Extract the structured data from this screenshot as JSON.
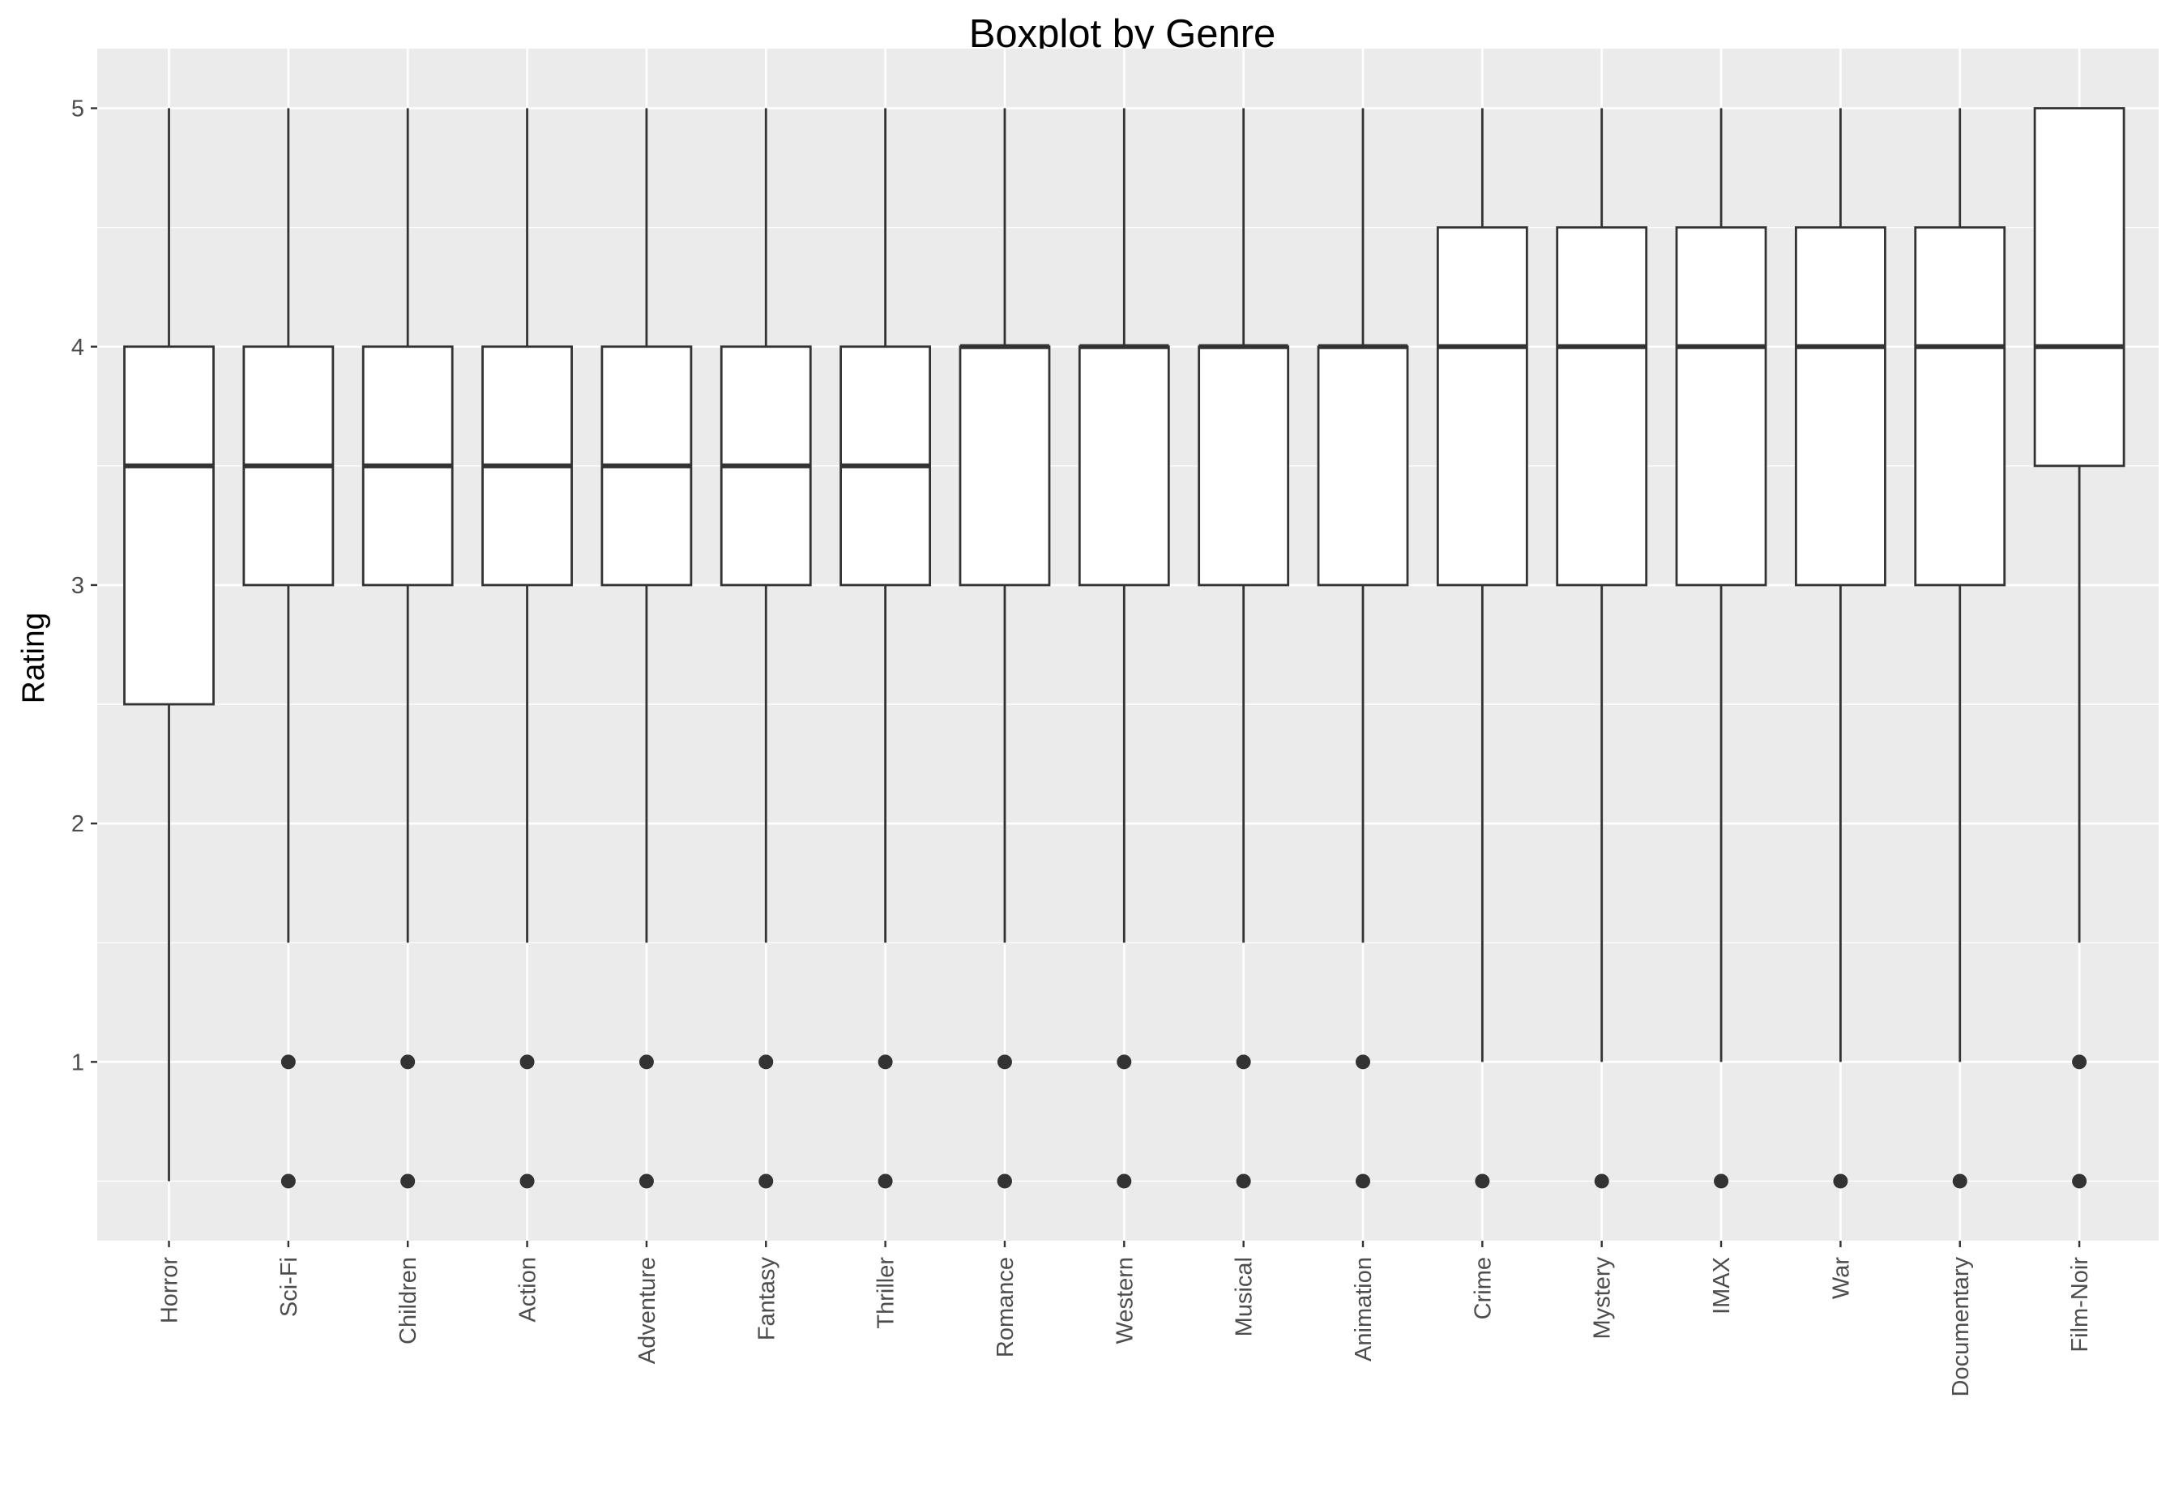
{
  "chart_data": {
    "type": "boxplot",
    "title": "Boxplot by Genre",
    "xlabel": "",
    "ylabel": "Rating",
    "ylim": [
      0.25,
      5.25
    ],
    "yticks": [
      1,
      2,
      3,
      4,
      5
    ],
    "grid": true,
    "colors": {
      "panel": "#ebebeb",
      "grid": "#ffffff",
      "box_fill": "#ffffff",
      "box_line": "#333333",
      "tick_text": "#4d4d4d"
    },
    "categories": [
      "Horror",
      "Sci-Fi",
      "Children",
      "Action",
      "Adventure",
      "Fantasy",
      "Thriller",
      "Romance",
      "Western",
      "Musical",
      "Animation",
      "Crime",
      "Mystery",
      "IMAX",
      "War",
      "Documentary",
      "Film-Noir"
    ],
    "boxes": [
      {
        "category": "Horror",
        "whisker_low": 0.5,
        "q1": 2.5,
        "median": 3.5,
        "q3": 4.0,
        "whisker_high": 5.0,
        "outliers": []
      },
      {
        "category": "Sci-Fi",
        "whisker_low": 1.5,
        "q1": 3.0,
        "median": 3.5,
        "q3": 4.0,
        "whisker_high": 5.0,
        "outliers": [
          1.0,
          0.5
        ]
      },
      {
        "category": "Children",
        "whisker_low": 1.5,
        "q1": 3.0,
        "median": 3.5,
        "q3": 4.0,
        "whisker_high": 5.0,
        "outliers": [
          1.0,
          0.5
        ]
      },
      {
        "category": "Action",
        "whisker_low": 1.5,
        "q1": 3.0,
        "median": 3.5,
        "q3": 4.0,
        "whisker_high": 5.0,
        "outliers": [
          1.0,
          0.5
        ]
      },
      {
        "category": "Adventure",
        "whisker_low": 1.5,
        "q1": 3.0,
        "median": 3.5,
        "q3": 4.0,
        "whisker_high": 5.0,
        "outliers": [
          1.0,
          0.5
        ]
      },
      {
        "category": "Fantasy",
        "whisker_low": 1.5,
        "q1": 3.0,
        "median": 3.5,
        "q3": 4.0,
        "whisker_high": 5.0,
        "outliers": [
          1.0,
          0.5
        ]
      },
      {
        "category": "Thriller",
        "whisker_low": 1.5,
        "q1": 3.0,
        "median": 3.5,
        "q3": 4.0,
        "whisker_high": 5.0,
        "outliers": [
          1.0,
          0.5
        ]
      },
      {
        "category": "Romance",
        "whisker_low": 1.5,
        "q1": 3.0,
        "median": 4.0,
        "q3": 4.0,
        "whisker_high": 5.0,
        "outliers": [
          1.0,
          0.5
        ]
      },
      {
        "category": "Western",
        "whisker_low": 1.5,
        "q1": 3.0,
        "median": 4.0,
        "q3": 4.0,
        "whisker_high": 5.0,
        "outliers": [
          1.0,
          0.5
        ]
      },
      {
        "category": "Musical",
        "whisker_low": 1.5,
        "q1": 3.0,
        "median": 4.0,
        "q3": 4.0,
        "whisker_high": 5.0,
        "outliers": [
          1.0,
          0.5
        ]
      },
      {
        "category": "Animation",
        "whisker_low": 1.5,
        "q1": 3.0,
        "median": 4.0,
        "q3": 4.0,
        "whisker_high": 5.0,
        "outliers": [
          1.0,
          0.5
        ]
      },
      {
        "category": "Crime",
        "whisker_low": 1.0,
        "q1": 3.0,
        "median": 4.0,
        "q3": 4.5,
        "whisker_high": 5.0,
        "outliers": [
          0.5
        ]
      },
      {
        "category": "Mystery",
        "whisker_low": 1.0,
        "q1": 3.0,
        "median": 4.0,
        "q3": 4.5,
        "whisker_high": 5.0,
        "outliers": [
          0.5
        ]
      },
      {
        "category": "IMAX",
        "whisker_low": 1.0,
        "q1": 3.0,
        "median": 4.0,
        "q3": 4.5,
        "whisker_high": 5.0,
        "outliers": [
          0.5
        ]
      },
      {
        "category": "War",
        "whisker_low": 1.0,
        "q1": 3.0,
        "median": 4.0,
        "q3": 4.5,
        "whisker_high": 5.0,
        "outliers": [
          0.5
        ]
      },
      {
        "category": "Documentary",
        "whisker_low": 1.0,
        "q1": 3.0,
        "median": 4.0,
        "q3": 4.5,
        "whisker_high": 5.0,
        "outliers": [
          0.5
        ]
      },
      {
        "category": "Film-Noir",
        "whisker_low": 1.5,
        "q1": 3.5,
        "median": 4.0,
        "q3": 5.0,
        "whisker_high": 5.0,
        "outliers": [
          1.0,
          0.5
        ]
      }
    ]
  }
}
